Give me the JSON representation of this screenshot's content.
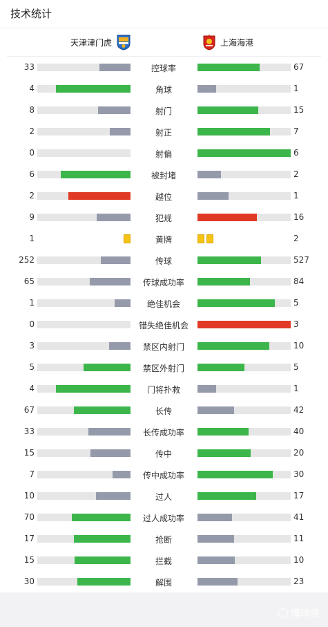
{
  "header": {
    "title": "技术统计"
  },
  "teams": {
    "home": {
      "name": "天津津门虎",
      "crest_icon": "tiger-crest-icon"
    },
    "away": {
      "name": "上海海港",
      "crest_icon": "port-crest-icon"
    }
  },
  "colors": {
    "good": "#3cb64a",
    "neutral": "#959aab",
    "bad": "#e03a26",
    "track": "#e6e6e6",
    "yellow": "#f5c314"
  },
  "stats": [
    {
      "label": "控球率",
      "home": 33,
      "away": 67,
      "home_share": 0.33,
      "away_share": 0.67,
      "home_color": "neutral",
      "away_color": "good"
    },
    {
      "label": "角球",
      "home": 4,
      "away": 1,
      "home_share": 0.8,
      "away_share": 0.2,
      "home_color": "good",
      "away_color": "neutral"
    },
    {
      "label": "射门",
      "home": 8,
      "away": 15,
      "home_share": 0.35,
      "away_share": 0.65,
      "home_color": "neutral",
      "away_color": "good"
    },
    {
      "label": "射正",
      "home": 2,
      "away": 7,
      "home_share": 0.22,
      "away_share": 0.78,
      "home_color": "neutral",
      "away_color": "good"
    },
    {
      "label": "射偏",
      "home": 0,
      "away": 6,
      "home_share": 0.0,
      "away_share": 1.0,
      "home_color": "neutral",
      "away_color": "good"
    },
    {
      "label": "被封堵",
      "home": 6,
      "away": 2,
      "home_share": 0.75,
      "away_share": 0.25,
      "home_color": "good",
      "away_color": "neutral"
    },
    {
      "label": "越位",
      "home": 2,
      "away": 1,
      "home_share": 0.67,
      "away_share": 0.33,
      "home_color": "bad",
      "away_color": "neutral"
    },
    {
      "label": "犯规",
      "home": 9,
      "away": 16,
      "home_share": 0.36,
      "away_share": 0.64,
      "home_color": "neutral",
      "away_color": "bad"
    },
    {
      "label": "黄牌",
      "home": 1,
      "away": 2,
      "cards": true
    },
    {
      "label": "传球",
      "home": 252,
      "away": 527,
      "home_share": 0.32,
      "away_share": 0.68,
      "home_color": "neutral",
      "away_color": "good"
    },
    {
      "label": "传球成功率",
      "home": 65,
      "away": 84,
      "home_share": 0.44,
      "away_share": 0.56,
      "home_color": "neutral",
      "away_color": "good"
    },
    {
      "label": "绝佳机会",
      "home": 1,
      "away": 5,
      "home_share": 0.17,
      "away_share": 0.83,
      "home_color": "neutral",
      "away_color": "good"
    },
    {
      "label": "错失绝佳机会",
      "home": 0,
      "away": 3,
      "home_share": 0.0,
      "away_share": 1.0,
      "home_color": "neutral",
      "away_color": "bad"
    },
    {
      "label": "禁区内射门",
      "home": 3,
      "away": 10,
      "home_share": 0.23,
      "away_share": 0.77,
      "home_color": "neutral",
      "away_color": "good"
    },
    {
      "label": "禁区外射门",
      "home": 5,
      "away": 5,
      "home_share": 0.5,
      "away_share": 0.5,
      "home_color": "good",
      "away_color": "good"
    },
    {
      "label": "门将扑救",
      "home": 4,
      "away": 1,
      "home_share": 0.8,
      "away_share": 0.2,
      "home_color": "good",
      "away_color": "neutral"
    },
    {
      "label": "长传",
      "home": 67,
      "away": 42,
      "home_share": 0.61,
      "away_share": 0.39,
      "home_color": "good",
      "away_color": "neutral"
    },
    {
      "label": "长传成功率",
      "home": 33,
      "away": 40,
      "home_share": 0.45,
      "away_share": 0.55,
      "home_color": "neutral",
      "away_color": "good"
    },
    {
      "label": "传中",
      "home": 15,
      "away": 20,
      "home_share": 0.43,
      "away_share": 0.57,
      "home_color": "neutral",
      "away_color": "good"
    },
    {
      "label": "传中成功率",
      "home": 7,
      "away": 30,
      "home_share": 0.19,
      "away_share": 0.81,
      "home_color": "neutral",
      "away_color": "good"
    },
    {
      "label": "过人",
      "home": 10,
      "away": 17,
      "home_share": 0.37,
      "away_share": 0.63,
      "home_color": "neutral",
      "away_color": "good"
    },
    {
      "label": "过人成功率",
      "home": 70,
      "away": 41,
      "home_share": 0.63,
      "away_share": 0.37,
      "home_color": "good",
      "away_color": "neutral"
    },
    {
      "label": "抢断",
      "home": 17,
      "away": 11,
      "home_share": 0.61,
      "away_share": 0.39,
      "home_color": "good",
      "away_color": "neutral"
    },
    {
      "label": "拦截",
      "home": 15,
      "away": 10,
      "home_share": 0.6,
      "away_share": 0.4,
      "home_color": "good",
      "away_color": "neutral"
    },
    {
      "label": "解围",
      "home": 30,
      "away": 23,
      "home_share": 0.57,
      "away_share": 0.43,
      "home_color": "good",
      "away_color": "neutral"
    }
  ],
  "footer": {
    "watermark": "懂球帝"
  }
}
